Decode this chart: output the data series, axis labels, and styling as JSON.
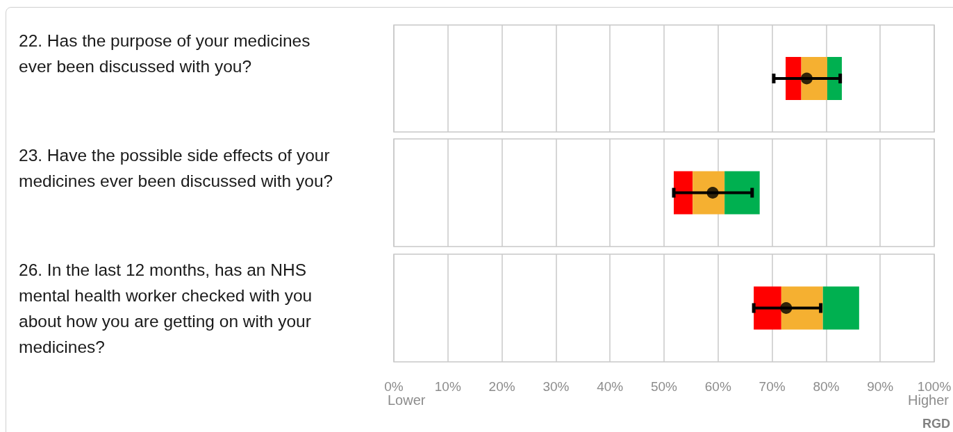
{
  "chart_data": [
    {
      "type": "bar",
      "orientation": "horizontal",
      "categories": [
        "22. Has the purpose of your medicines ever been discussed with you?"
      ],
      "series": [
        {
          "color": "#ff0000",
          "base": [
            72.5
          ],
          "values": [
            2.9
          ]
        },
        {
          "color": "#f5b031",
          "base": [
            75.4
          ],
          "values": [
            4.8
          ]
        },
        {
          "color": "#00b050",
          "base": [
            80.2
          ],
          "values": [
            2.7
          ]
        },
        {
          "type": "scatter",
          "color": "#000000",
          "x": [
            "22. Has the purpose of your medicines ever been discussed with you?"
          ],
          "values": [
            76.4
          ],
          "errors": [
            [
              70.3,
              82.6
            ]
          ]
        }
      ],
      "xlim": [
        0,
        100
      ],
      "xticks": [
        0,
        10,
        20,
        30,
        40,
        50,
        60,
        70,
        80,
        90,
        100
      ],
      "grid": "x",
      "marker": "circle",
      "tick_labels": "y"
    },
    {
      "type": "bar",
      "orientation": "horizontal",
      "categories": [
        "23. Have the possible side effects of your medicines ever been discussed with you?"
      ],
      "series": [
        {
          "color": "#ff0000",
          "base": [
            51.8
          ],
          "values": [
            3.5
          ]
        },
        {
          "color": "#f5b031",
          "base": [
            55.3
          ],
          "values": [
            5.9
          ]
        },
        {
          "color": "#00b050",
          "base": [
            61.2
          ],
          "values": [
            6.5
          ]
        },
        {
          "type": "scatter",
          "color": "#000000",
          "x": [
            "23. Have the possible side effects of your medicines ever been discussed with you?"
          ],
          "values": [
            59.0
          ],
          "errors": [
            [
              51.8,
              66.3
            ]
          ]
        }
      ],
      "xlim": [
        0,
        100
      ],
      "xticks": [
        0,
        10,
        20,
        30,
        40,
        50,
        60,
        70,
        80,
        90,
        100
      ],
      "grid": "x",
      "marker": "circle",
      "tick_labels": "y"
    },
    {
      "type": "bar",
      "orientation": "horizontal",
      "categories": [
        "26. In the last 12 months, has an NHS mental health worker checked with you about how you are getting on with your medicines?"
      ],
      "series": [
        {
          "color": "#ff0000",
          "base": [
            66.6
          ],
          "values": [
            5.1
          ]
        },
        {
          "color": "#f5b031",
          "base": [
            71.7
          ],
          "values": [
            7.7
          ]
        },
        {
          "color": "#00b050",
          "base": [
            79.4
          ],
          "values": [
            6.7
          ]
        },
        {
          "type": "scatter",
          "color": "#000000",
          "x": [
            "26. In the last 12 months, has an NHS mental health worker checked with you about how you are getting on with your medicines?"
          ],
          "values": [
            72.6
          ],
          "errors": [
            [
              66.6,
              79.0
            ]
          ]
        }
      ],
      "xlim": [
        0,
        100
      ],
      "xticks": [
        {
          "value": 0,
          "label": "0%"
        },
        {
          "value": 10,
          "label": "10%"
        },
        {
          "value": 20,
          "label": "20%"
        },
        {
          "value": 30,
          "label": "30%"
        },
        {
          "value": 40,
          "label": "40%"
        },
        {
          "value": 50,
          "label": "50%"
        },
        {
          "value": 60,
          "label": "60%"
        },
        {
          "value": 70,
          "label": "70%"
        },
        {
          "value": 80,
          "label": "80%"
        },
        {
          "value": 90,
          "label": "90%"
        },
        {
          "value": 100,
          "label": "100%"
        }
      ],
      "grid": "x",
      "marker": "circle",
      "annotations": [
        "Lower",
        "Higher",
        "RGD"
      ]
    }
  ]
}
